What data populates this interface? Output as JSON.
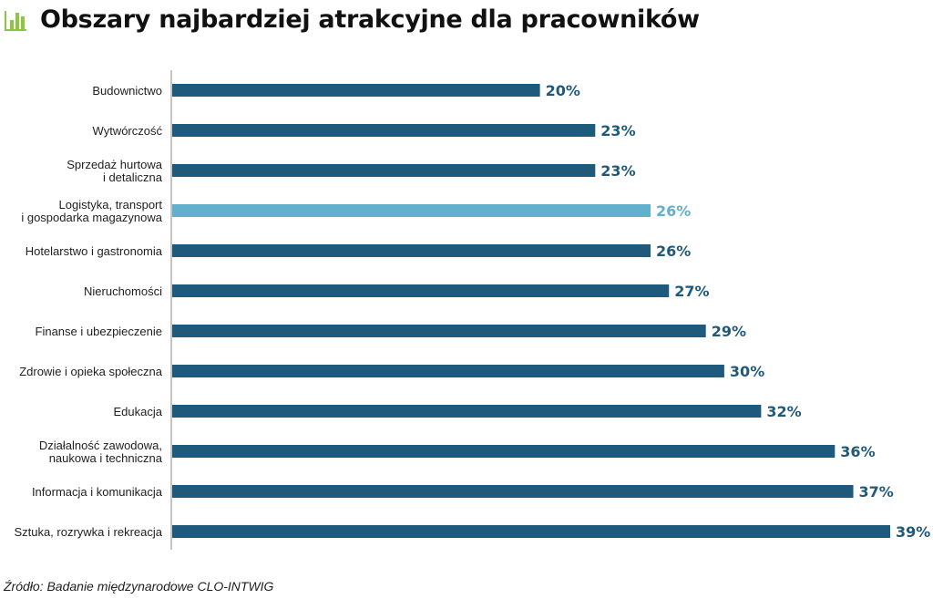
{
  "chart_data": {
    "type": "bar",
    "orientation": "horizontal",
    "title": "Obszary najbardziej atrakcyjne dla pracowników",
    "value_suffix": "%",
    "xlim": [
      0,
      39
    ],
    "grid": false,
    "legend": "none",
    "categories": [
      "Budownictwo",
      "Wytwórczość",
      "Sprzedaż hurtowa\ni detaliczna",
      "Logistyka, transport\ni gospodarka magazynowa",
      "Hotelarstwo i gastronomia",
      "Nieruchomości",
      "Finanse i ubezpieczenie",
      "Zdrowie i opieka społeczna",
      "Edukacja",
      "Działalność zawodowa,\nnaukowa i techniczna",
      "Informacja i komunikacja",
      "Sztuka, rozrywka i rekreacja"
    ],
    "values": [
      20,
      23,
      23,
      26,
      26,
      27,
      29,
      30,
      32,
      36,
      37,
      39
    ],
    "value_labels": [
      "20%",
      "23%",
      "23%",
      "26%",
      "26%",
      "27%",
      "29%",
      "30%",
      "32%",
      "36%",
      "37%",
      "39%"
    ],
    "highlight_index": 3
  },
  "colors": {
    "bar": "#1f5a7d",
    "highlight": "#62b0cc",
    "axis": "#8a8a8a",
    "icon": "#8dc63f"
  },
  "icon": "bar-chart-icon",
  "source": "Źródło: Badanie międzynarodowe CLO-INTWIG"
}
